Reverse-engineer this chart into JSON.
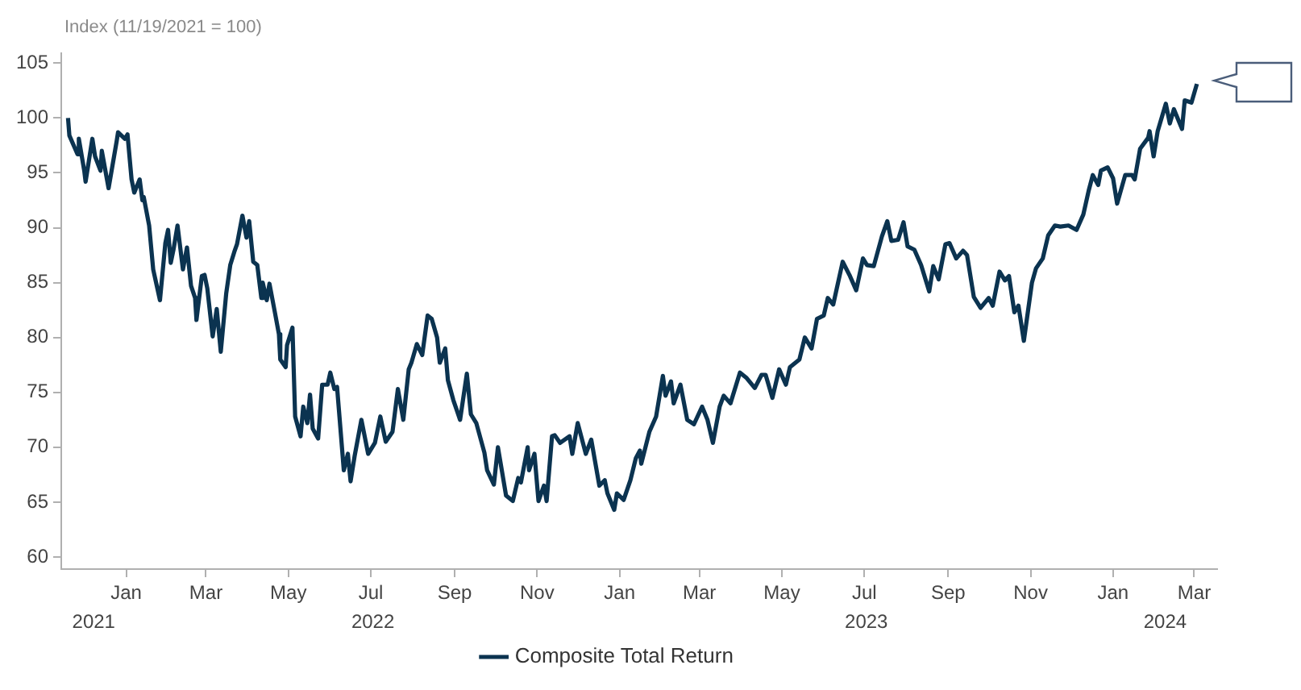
{
  "chart_data": {
    "type": "line",
    "ylabel": "Index (11/19/2021 = 100)",
    "legend": "bottom",
    "grid": false,
    "marker": "none",
    "line_style": "solid",
    "xlim": [
      "2021-11-14",
      "2024-03-18"
    ],
    "ylim": [
      58.9,
      105.9
    ],
    "yticks": [
      60,
      65,
      70,
      75,
      80,
      85,
      90,
      95,
      100,
      105
    ],
    "xticks": [
      {
        "value": "2022-01-01",
        "label": "Jan"
      },
      {
        "value": "2022-03-01",
        "label": "Mar"
      },
      {
        "value": "2022-05-01",
        "label": "May"
      },
      {
        "value": "2022-07-01",
        "label": "Jul"
      },
      {
        "value": "2022-09-01",
        "label": "Sep"
      },
      {
        "value": "2022-11-01",
        "label": "Nov"
      },
      {
        "value": "2023-01-01",
        "label": "Jan"
      },
      {
        "value": "2023-03-01",
        "label": "Mar"
      },
      {
        "value": "2023-05-01",
        "label": "May"
      },
      {
        "value": "2023-07-01",
        "label": "Jul"
      },
      {
        "value": "2023-09-01",
        "label": "Sep"
      },
      {
        "value": "2023-11-01",
        "label": "Nov"
      },
      {
        "value": "2024-01-01",
        "label": "Jan"
      },
      {
        "value": "2024-03-01",
        "label": "Mar"
      }
    ],
    "annotations": [
      "2021",
      "2022",
      "2023",
      "2024"
    ],
    "series": [
      {
        "name": "Composite Total Return",
        "color": "#0b3350",
        "x": [
          "2021-11-19",
          "2021-11-20",
          "2021-11-26",
          "2021-11-27",
          "2021-12-01",
          "2021-12-02",
          "2021-12-07",
          "2021-12-09",
          "2021-12-13",
          "2021-12-14",
          "2021-12-19",
          "2021-12-25",
          "2021-12-26",
          "2021-12-31",
          "2022-01-02",
          "2022-01-05",
          "2022-01-07",
          "2022-01-11",
          "2022-01-13",
          "2022-01-14",
          "2022-01-18",
          "2022-01-21",
          "2022-01-26",
          "2022-01-30",
          "2022-02-01",
          "2022-02-03",
          "2022-02-05",
          "2022-02-08",
          "2022-02-12",
          "2022-02-15",
          "2022-02-18",
          "2022-02-21",
          "2022-02-22",
          "2022-02-26",
          "2022-02-28",
          "2022-03-02",
          "2022-03-06",
          "2022-03-09",
          "2022-03-12",
          "2022-03-16",
          "2022-03-19",
          "2022-03-22",
          "2022-03-24",
          "2022-03-28",
          "2022-03-31",
          "2022-04-02",
          "2022-04-05",
          "2022-04-08",
          "2022-04-11",
          "2022-04-12",
          "2022-04-15",
          "2022-04-17",
          "2022-04-21",
          "2022-04-24",
          "2022-04-25",
          "2022-04-29",
          "2022-04-30",
          "2022-05-04",
          "2022-05-06",
          "2022-05-10",
          "2022-05-12",
          "2022-05-15",
          "2022-05-17",
          "2022-05-19",
          "2022-05-23",
          "2022-05-26",
          "2022-05-30",
          "2022-06-01",
          "2022-06-04",
          "2022-06-06",
          "2022-06-11",
          "2022-06-14",
          "2022-06-16",
          "2022-06-19",
          "2022-06-24",
          "2022-06-29",
          "2022-07-04",
          "2022-07-08",
          "2022-07-12",
          "2022-07-17",
          "2022-07-21",
          "2022-07-25",
          "2022-07-29",
          "2022-07-31",
          "2022-08-04",
          "2022-08-08",
          "2022-08-12",
          "2022-08-15",
          "2022-08-19",
          "2022-08-21",
          "2022-08-25",
          "2022-08-27",
          "2022-08-31",
          "2022-09-05",
          "2022-09-10",
          "2022-09-13",
          "2022-09-17",
          "2022-09-23",
          "2022-09-25",
          "2022-09-30",
          "2022-10-03",
          "2022-10-09",
          "2022-10-14",
          "2022-10-18",
          "2022-10-20",
          "2022-10-25",
          "2022-10-26",
          "2022-10-30",
          "2022-11-02",
          "2022-11-06",
          "2022-11-08",
          "2022-11-12",
          "2022-11-14",
          "2022-11-18",
          "2022-11-25",
          "2022-11-27",
          "2022-12-01",
          "2022-12-07",
          "2022-12-11",
          "2022-12-17",
          "2022-12-21",
          "2022-12-23",
          "2022-12-28",
          "2022-12-30",
          "2023-01-04",
          "2023-01-09",
          "2023-01-13",
          "2023-01-16",
          "2023-01-17",
          "2023-01-23",
          "2023-01-28",
          "2023-02-02",
          "2023-02-04",
          "2023-02-08",
          "2023-02-10",
          "2023-02-15",
          "2023-02-20",
          "2023-02-25",
          "2023-03-03",
          "2023-03-07",
          "2023-03-11",
          "2023-03-16",
          "2023-03-19",
          "2023-03-24",
          "2023-03-31",
          "2023-04-05",
          "2023-04-11",
          "2023-04-16",
          "2023-04-19",
          "2023-04-24",
          "2023-04-29",
          "2023-05-04",
          "2023-05-07",
          "2023-05-14",
          "2023-05-18",
          "2023-05-23",
          "2023-05-27",
          "2023-06-01",
          "2023-06-04",
          "2023-06-08",
          "2023-06-15",
          "2023-06-20",
          "2023-06-25",
          "2023-06-30",
          "2023-07-03",
          "2023-07-08",
          "2023-07-14",
          "2023-07-18",
          "2023-07-21",
          "2023-07-26",
          "2023-07-30",
          "2023-08-02",
          "2023-08-07",
          "2023-08-12",
          "2023-08-18",
          "2023-08-21",
          "2023-08-25",
          "2023-08-30",
          "2023-09-02",
          "2023-09-07",
          "2023-09-12",
          "2023-09-15",
          "2023-09-20",
          "2023-09-25",
          "2023-10-01",
          "2023-10-04",
          "2023-10-09",
          "2023-10-13",
          "2023-10-16",
          "2023-10-20",
          "2023-10-23",
          "2023-10-27",
          "2023-11-02",
          "2023-11-05",
          "2023-11-10",
          "2023-11-14",
          "2023-11-19",
          "2023-11-23",
          "2023-11-29",
          "2023-12-05",
          "2023-12-10",
          "2023-12-14",
          "2023-12-17",
          "2023-12-21",
          "2023-12-23",
          "2023-12-28",
          "2024-01-01",
          "2024-01-04",
          "2024-01-10",
          "2024-01-15",
          "2024-01-17",
          "2024-01-21",
          "2024-01-27",
          "2024-01-28",
          "2024-01-31",
          "2024-02-03",
          "2024-02-09",
          "2024-02-12",
          "2024-02-15",
          "2024-02-21",
          "2024-02-23",
          "2024-02-28",
          "2024-03-03"
        ],
        "values": [
          100,
          98.4,
          96.7,
          98.1,
          95.2,
          94.2,
          98.1,
          96.5,
          95.2,
          97.0,
          93.6,
          97.9,
          98.7,
          98.1,
          98.5,
          94.4,
          93.2,
          94.4,
          92.5,
          92.8,
          90.2,
          86.2,
          83.4,
          88.6,
          89.8,
          86.8,
          88.0,
          90.2,
          86.2,
          88.2,
          84.7,
          83.6,
          81.6,
          85.6,
          85.7,
          84.5,
          80.1,
          82.6,
          78.7,
          84.0,
          86.6,
          87.8,
          88.5,
          91.1,
          89.1,
          90.6,
          86.9,
          86.6,
          83.6,
          85.0,
          83.4,
          84.9,
          82.3,
          80.3,
          78.0,
          77.3,
          79.3,
          80.9,
          72.8,
          71.0,
          73.7,
          72.2,
          74.8,
          71.7,
          70.8,
          75.7,
          75.7,
          76.8,
          75.3,
          75.5,
          67.9,
          69.4,
          66.9,
          69.2,
          72.5,
          69.4,
          70.4,
          72.8,
          70.5,
          71.4,
          75.3,
          72.5,
          77.1,
          77.7,
          79.4,
          78.4,
          82.0,
          81.7,
          80.0,
          77.7,
          79.0,
          76.1,
          74.3,
          72.5,
          76.7,
          73.0,
          72.2,
          69.5,
          67.9,
          66.6,
          70.0,
          65.6,
          65.1,
          67.2,
          66.8,
          70.0,
          67.9,
          69.4,
          65.1,
          66.5,
          65.1,
          71.0,
          71.1,
          70.4,
          71.0,
          69.4,
          72.2,
          69.4,
          70.7,
          66.5,
          67.0,
          65.8,
          64.3,
          65.8,
          65.2,
          67.0,
          69.0,
          69.7,
          68.5,
          71.4,
          72.8,
          76.5,
          74.7,
          76.0,
          74.0,
          75.7,
          72.5,
          72.1,
          73.7,
          72.5,
          70.4,
          73.7,
          74.7,
          74.0,
          76.8,
          76.3,
          75.4,
          76.6,
          76.6,
          74.5,
          77.1,
          75.7,
          77.3,
          78.0,
          80.0,
          79.0,
          81.7,
          82.0,
          83.6,
          83.0,
          86.9,
          85.7,
          84.3,
          87.2,
          86.6,
          86.5,
          89.2,
          90.6,
          88.8,
          88.9,
          90.5,
          88.3,
          88.0,
          86.6,
          84.2,
          86.5,
          85.3,
          88.5,
          88.6,
          87.2,
          87.9,
          87.5,
          83.7,
          82.7,
          83.6,
          82.9,
          86.0,
          85.2,
          85.6,
          82.3,
          82.9,
          79.7,
          85.0,
          86.3,
          87.2,
          89.3,
          90.2,
          90.1,
          90.2,
          89.8,
          91.2,
          93.4,
          94.8,
          93.9,
          95.2,
          95.5,
          94.5,
          92.2,
          94.8,
          94.8,
          94.4,
          97.2,
          98.2,
          98.8,
          96.5,
          98.8,
          101.3,
          99.5,
          100.8,
          99.0,
          101.6,
          101.4,
          103.1
        ]
      }
    ]
  }
}
